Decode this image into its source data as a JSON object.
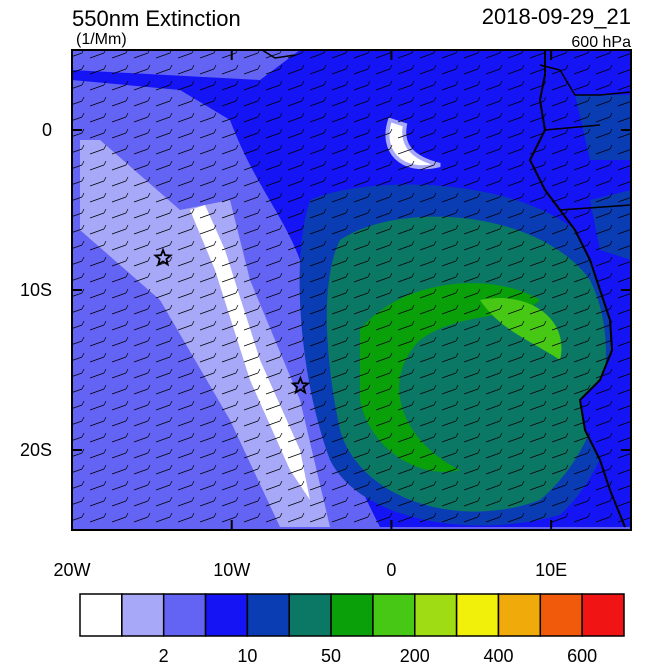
{
  "chart_data": {
    "type": "map",
    "title": "550nm Extinction",
    "units": "(1/Mm)",
    "time": "2018-09-29_21",
    "level": "600 hPa",
    "xlim": [
      -20,
      15
    ],
    "ylim": [
      -25,
      5
    ],
    "xticks": [
      {
        "value": -20,
        "label": "20W"
      },
      {
        "value": -10,
        "label": "10W"
      },
      0,
      {
        "value": 10,
        "label": "10E"
      }
    ],
    "yticks": [
      0,
      {
        "value": -10,
        "label": "10S"
      },
      {
        "value": -20,
        "label": "20S"
      }
    ],
    "markers": [
      {
        "lon": -14.3,
        "lat": -8
      },
      {
        "lon": -5.7,
        "lat": -16
      }
    ],
    "colorbar": {
      "colors": [
        "#ffffff",
        "#a8a8f8",
        "#6464f4",
        "#1414f4",
        "#0a3cb4",
        "#0a7864",
        "#0aa00a",
        "#46c814",
        "#a0dc14",
        "#f0f00a",
        "#f0aa0a",
        "#f05a0a",
        "#f01414"
      ],
      "levels": [
        null,
        2,
        null,
        10,
        null,
        50,
        null,
        200,
        null,
        400,
        null,
        600
      ]
    }
  }
}
